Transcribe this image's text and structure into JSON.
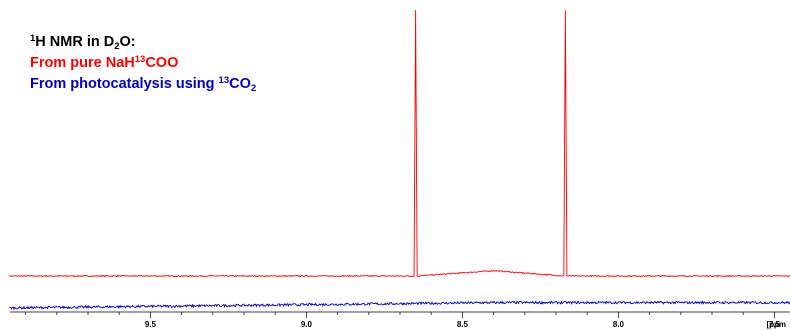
{
  "legend": {
    "header": {
      "prefix_sup": "1",
      "a": "H NMR in D",
      "sub": "2",
      "b": "O:",
      "color": "#000000"
    },
    "pure": {
      "a": "From pure NaH",
      "sup": "13",
      "b": "COO",
      "color": "#ff0000"
    },
    "photo": {
      "a": "From photocatalysis using ",
      "sup": "13",
      "b": "CO",
      "sub": "2",
      "color": "#0000cc"
    }
  },
  "chart_data": {
    "type": "line",
    "title": "",
    "xlabel": "",
    "ylabel": "",
    "x_unit_label": "[ppm",
    "xlim": [
      9.95,
      7.45
    ],
    "x_reversed": true,
    "x_ticks": [
      9.5,
      9.0,
      8.5,
      8.0,
      7.5
    ],
    "x_tick_labels": [
      "9.5",
      "9.0",
      "8.5",
      "8.0",
      "7.5"
    ],
    "grid": false,
    "legend_position": "top-left",
    "series": [
      {
        "color": "#ff0000",
        "baseline": 0.0,
        "points": [
          [
            9.95,
            0.0
          ],
          [
            8.655,
            0.0
          ],
          [
            8.65,
            1.0
          ],
          [
            8.645,
            0.0
          ],
          [
            8.4,
            0.02
          ],
          [
            8.175,
            0.0
          ],
          [
            8.17,
            1.0
          ],
          [
            8.165,
            0.0
          ],
          [
            7.45,
            0.0
          ]
        ]
      },
      {
        "color": "#0000cc",
        "baseline": -0.12,
        "points": [
          [
            9.95,
            -0.12
          ],
          [
            8.4,
            -0.1
          ],
          [
            7.45,
            -0.1
          ]
        ]
      }
    ]
  }
}
